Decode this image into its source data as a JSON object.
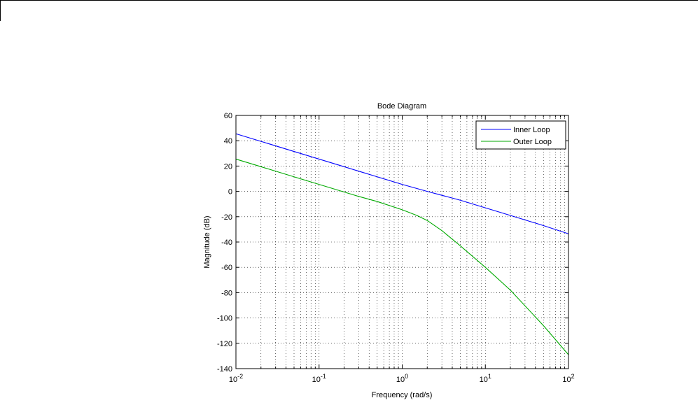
{
  "chart_data": {
    "type": "line",
    "title": "Bode Diagram",
    "xlabel": "Frequency  (rad/s)",
    "ylabel": "Magnitude (dB)",
    "x_scale": "log",
    "xlim": [
      0.01,
      100
    ],
    "ylim": [
      -140,
      60
    ],
    "grid": true,
    "legend_position": "top-right",
    "x_tick_labels": [
      {
        "base": "10",
        "exp": "-2",
        "value": 0.01
      },
      {
        "base": "10",
        "exp": "-1",
        "value": 0.1
      },
      {
        "base": "10",
        "exp": "0",
        "value": 1
      },
      {
        "base": "10",
        "exp": "1",
        "value": 10
      },
      {
        "base": "10",
        "exp": "2",
        "value": 100
      }
    ],
    "y_ticks": [
      60,
      40,
      20,
      0,
      -20,
      -40,
      -60,
      -80,
      -100,
      -120,
      -140
    ],
    "series": [
      {
        "name": "Inner Loop",
        "color": "#0000ff",
        "x": [
          0.01,
          0.02,
          0.05,
          0.1,
          0.2,
          0.5,
          1,
          2,
          5,
          10,
          20,
          50,
          100
        ],
        "y": [
          45.5,
          39.5,
          31.5,
          25.5,
          19.5,
          11.5,
          5.5,
          0,
          -7,
          -13,
          -19,
          -27,
          -33.5
        ]
      },
      {
        "name": "Outer Loop",
        "color": "#00aa00",
        "x": [
          0.01,
          0.02,
          0.05,
          0.1,
          0.2,
          0.3,
          0.5,
          1,
          1.5,
          2,
          3,
          5,
          10,
          20,
          50,
          100
        ],
        "y": [
          25.5,
          19.5,
          11.5,
          5.5,
          -0.5,
          -4,
          -8,
          -14.5,
          -19,
          -23,
          -31,
          -43,
          -60,
          -78,
          -106,
          -129
        ]
      }
    ]
  }
}
